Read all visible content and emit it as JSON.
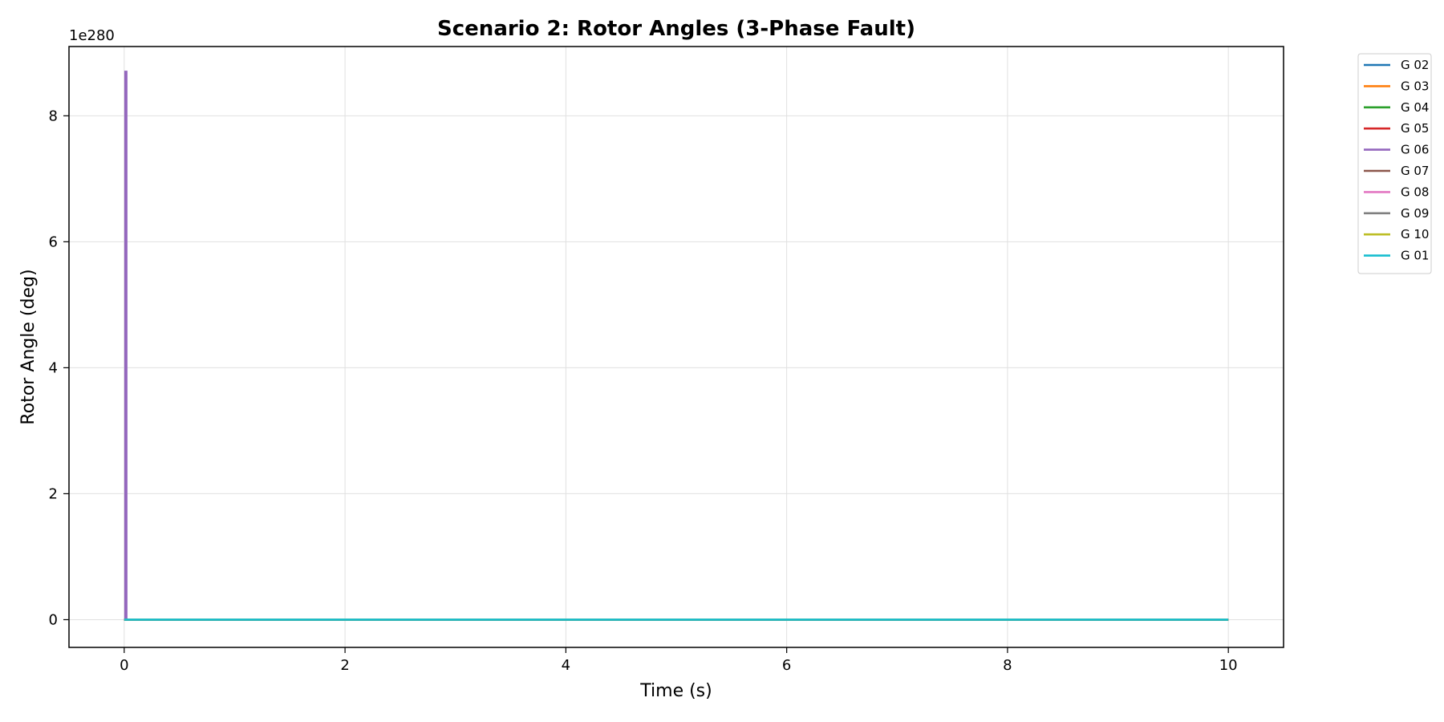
{
  "chart_data": {
    "type": "line",
    "title": "Scenario 2: Rotor Angles (3-Phase Fault)",
    "xlabel": "Time (s)",
    "ylabel": "Rotor Angle (deg)",
    "y_offset_text": "1e280",
    "y_multiplier": 1e+280,
    "xlim": [
      -0.5,
      10.5
    ],
    "ylim": [
      -0.44,
      9.1
    ],
    "x_ticks": [
      0,
      2,
      4,
      6,
      8,
      10
    ],
    "x_tick_labels": [
      "0",
      "2",
      "4",
      "6",
      "8",
      "10"
    ],
    "y_ticks": [
      0,
      2,
      4,
      6,
      8
    ],
    "y_tick_labels": [
      "0",
      "2",
      "4",
      "6",
      "8"
    ],
    "grid": true,
    "legend_position": "outside-top-right",
    "series": [
      {
        "name": "G 02",
        "color": "#1f77b4",
        "x": [
          0,
          10
        ],
        "y": [
          0,
          0
        ]
      },
      {
        "name": "G 03",
        "color": "#ff7f0e",
        "x": [
          0,
          10
        ],
        "y": [
          0,
          0
        ]
      },
      {
        "name": "G 04",
        "color": "#2ca02c",
        "x": [
          0,
          10
        ],
        "y": [
          0,
          0
        ]
      },
      {
        "name": "G 05",
        "color": "#d62728",
        "x": [
          0,
          10
        ],
        "y": [
          0,
          0
        ]
      },
      {
        "name": "G 06",
        "color": "#9467bd",
        "x": [
          0,
          0.01,
          0.01,
          0.02,
          0.02
        ],
        "y": [
          0,
          0,
          8.7,
          8.7,
          0
        ]
      },
      {
        "name": "G 07",
        "color": "#8c564b",
        "x": [
          0,
          10
        ],
        "y": [
          0,
          0
        ]
      },
      {
        "name": "G 08",
        "color": "#e377c2",
        "x": [
          0,
          10
        ],
        "y": [
          0,
          0
        ]
      },
      {
        "name": "G 09",
        "color": "#7f7f7f",
        "x": [
          0,
          10
        ],
        "y": [
          0,
          0
        ]
      },
      {
        "name": "G 10",
        "color": "#bcbd22",
        "x": [
          0,
          10
        ],
        "y": [
          0,
          0
        ]
      },
      {
        "name": "G 01",
        "color": "#17becf",
        "x": [
          0,
          10
        ],
        "y": [
          0,
          0
        ]
      }
    ]
  }
}
